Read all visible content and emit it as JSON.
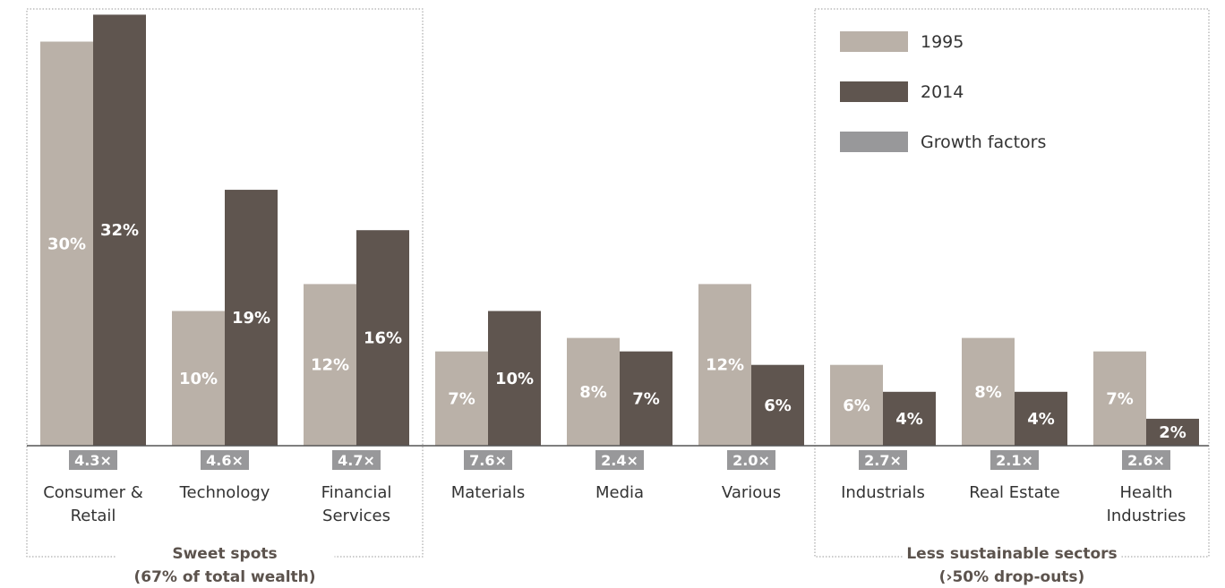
{
  "chart_data": {
    "type": "bar",
    "categories": [
      [
        "Consumer &",
        "Retail"
      ],
      [
        "Technology"
      ],
      [
        "Financial",
        "Services"
      ],
      [
        "Materials"
      ],
      [
        "Media"
      ],
      [
        "Various"
      ],
      [
        "Industrials"
      ],
      [
        "Real Estate"
      ],
      [
        "Health",
        "Industries"
      ]
    ],
    "series": [
      {
        "name": "1995",
        "color": "#bab1a8",
        "values": [
          30,
          10,
          12,
          7,
          8,
          12,
          6,
          8,
          7
        ],
        "labels": [
          "30%",
          "10%",
          "12%",
          "7%",
          "8%",
          "12%",
          "6%",
          "8%",
          "7%"
        ]
      },
      {
        "name": "2014",
        "color": "#5f554f",
        "values": [
          32,
          19,
          16,
          10,
          7,
          6,
          4,
          4,
          2
        ],
        "labels": [
          "32%",
          "19%",
          "16%",
          "10%",
          "7%",
          "6%",
          "4%",
          "4%",
          "2%"
        ]
      }
    ],
    "growth_factors": {
      "name": "Growth factors",
      "color": "#98989a",
      "labels": [
        "4.3×",
        "4.6×",
        "4.7×",
        "7.6×",
        "2.4×",
        "2.0×",
        "2.7×",
        "2.1×",
        "2.6×"
      ]
    },
    "groups": [
      {
        "caption": [
          "Sweet spots",
          "(67% of total wealth)"
        ],
        "categories": [
          0,
          2
        ]
      },
      {
        "caption": [
          "Less sustainable sectors",
          "(›50% drop-outs)"
        ],
        "categories": [
          6,
          8
        ]
      }
    ],
    "legend_position": "top-right",
    "grid": false
  }
}
